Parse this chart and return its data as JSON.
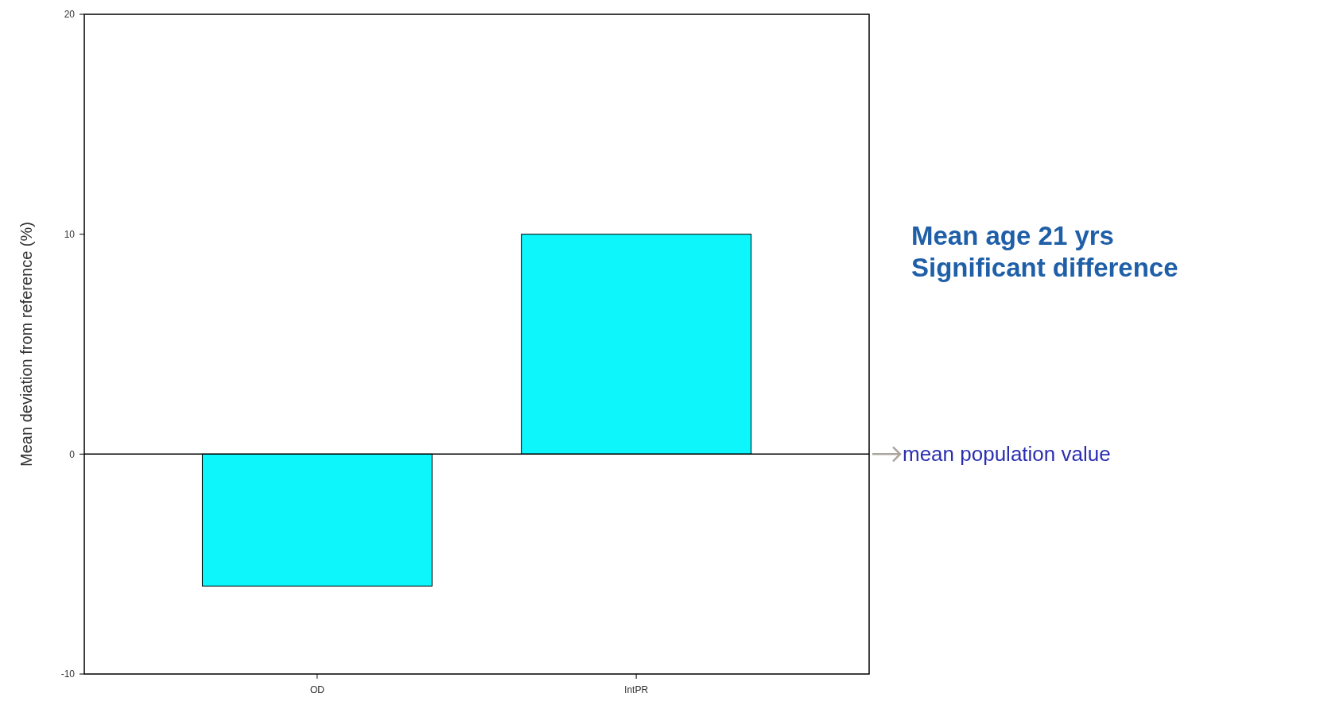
{
  "chart_data": {
    "type": "bar",
    "ylabel": "Mean deviation from reference (%)",
    "categories": [
      "OD",
      "IntPR"
    ],
    "values": [
      -6,
      10
    ],
    "color": "#0cf6fb",
    "ylim": [
      -10,
      20
    ],
    "yticks": [
      -10,
      0,
      10,
      20
    ],
    "grid": false,
    "ref_lines": [
      {
        "axis": "y",
        "value": 0,
        "label": "mean population value"
      }
    ],
    "annotations": [
      "Mean age 21 yrs",
      "Significant difference"
    ]
  }
}
